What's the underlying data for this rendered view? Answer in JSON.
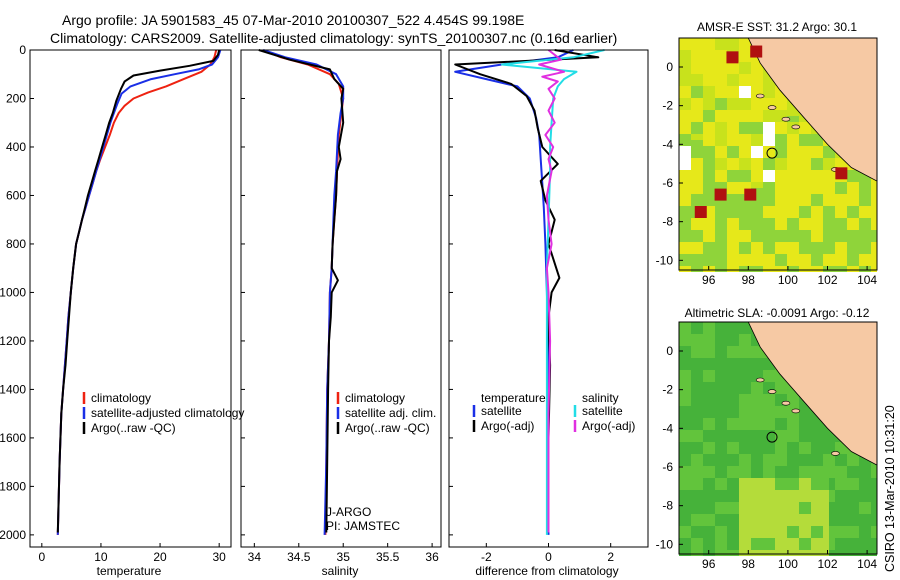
{
  "figure": {
    "title_line1": "Argo profile: JA 5901583_45 07-Mar-2010 20100307_522 4.454S 99.198E",
    "title_line2": "Climatology: CARS2009. Satellite-adjusted climatology: synTS_20100307.nc (0.16d earlier)",
    "side_label": "CSIRO 13-Mar-2010 10:31:20",
    "colors": {
      "climatology": "#ee2211",
      "satellite": "#1a2fe6",
      "argo": "#000000",
      "sal_satellite": "#22dde6",
      "sal_argo": "#e030e0",
      "land": "#f6c9a4",
      "frame": "#000000"
    }
  },
  "chart_data": [
    {
      "type": "line",
      "id": "temperature",
      "xlabel": "temperature",
      "ylabel": "",
      "xlim": [
        -2,
        32
      ],
      "ylim": [
        2050,
        0
      ],
      "xticks": [
        0,
        10,
        20,
        30
      ],
      "yticks": [
        0,
        200,
        400,
        600,
        800,
        1000,
        1200,
        1400,
        1600,
        1800,
        2000
      ],
      "legend": {
        "placement": "lower-right",
        "entries": [
          "climatology",
          "satellite-adjusted climatology",
          "Argo(..raw -QC)"
        ]
      },
      "series": [
        {
          "name": "climatology",
          "color_key": "climatology",
          "x": [
            29.5,
            29.2,
            28.5,
            27.0,
            24.0,
            21.0,
            18.0,
            15.5,
            14.0,
            13.0,
            12.2,
            11.5,
            10.7,
            9.9,
            9.2,
            8.6,
            8.0,
            7.4,
            6.8,
            6.3,
            5.8,
            5.3,
            4.9,
            4.5,
            4.2,
            3.9,
            3.6,
            3.3,
            3.0,
            2.7
          ],
          "y": [
            0,
            30,
            60,
            90,
            120,
            150,
            175,
            200,
            230,
            260,
            300,
            350,
            400,
            450,
            500,
            550,
            600,
            650,
            700,
            750,
            800,
            900,
            1000,
            1100,
            1200,
            1300,
            1400,
            1500,
            1700,
            2000
          ]
        },
        {
          "name": "satellite-adjusted climatology",
          "color_key": "satellite",
          "x": [
            30.2,
            29.8,
            28.8,
            26.5,
            22.5,
            18.5,
            15.0,
            13.5,
            12.8,
            12.2,
            11.6,
            11.0,
            10.4,
            9.8,
            9.2,
            8.6,
            8.0,
            7.4,
            6.8,
            6.3,
            5.8,
            5.3,
            4.9,
            4.5,
            4.2,
            3.9,
            3.6,
            3.3,
            3.0,
            2.7
          ],
          "y": [
            0,
            30,
            60,
            80,
            100,
            120,
            150,
            180,
            220,
            260,
            300,
            350,
            400,
            450,
            500,
            550,
            600,
            650,
            700,
            750,
            800,
            900,
            1000,
            1100,
            1200,
            1300,
            1400,
            1500,
            1700,
            2000
          ]
        },
        {
          "name": "Argo(..raw -QC)",
          "color_key": "argo",
          "x": [
            30.0,
            29.8,
            29.0,
            25.0,
            20.0,
            15.5,
            14.0,
            13.4,
            12.6,
            12.0,
            11.4,
            10.8,
            10.2,
            9.6,
            9.0,
            8.4,
            7.8,
            7.3,
            6.8,
            6.3,
            5.8,
            5.3,
            4.9,
            4.6,
            4.3,
            4.0,
            3.6,
            3.3,
            3.0,
            2.7
          ],
          "y": [
            0,
            20,
            45,
            65,
            85,
            105,
            130,
            160,
            210,
            260,
            300,
            350,
            400,
            450,
            500,
            550,
            600,
            650,
            700,
            750,
            800,
            900,
            1000,
            1100,
            1200,
            1300,
            1400,
            1500,
            1700,
            1990
          ]
        }
      ]
    },
    {
      "type": "line",
      "id": "salinity",
      "xlabel": "salinity",
      "ylabel": "",
      "xlim": [
        33.85,
        36.1
      ],
      "ylim": [
        2050,
        0
      ],
      "xticks": [
        34,
        34.5,
        35,
        35.5,
        36
      ],
      "xtick_labels": [
        "34",
        "34.5",
        "35",
        "35.5",
        "36"
      ],
      "legend": {
        "placement": "lower-right",
        "entries": [
          "climatology",
          "satellite adj. clim.",
          "Argo(..raw -QC)"
        ]
      },
      "annotations": [
        "J-ARGO",
        "PI: JAMSTEC"
      ],
      "series": [
        {
          "name": "climatology",
          "color_key": "climatology",
          "x": [
            34.1,
            34.3,
            34.6,
            34.85,
            34.95,
            35.0,
            34.98,
            34.95,
            34.93,
            34.92,
            34.9,
            34.88,
            34.87,
            34.85,
            34.84,
            34.82,
            34.81,
            34.8
          ],
          "y": [
            0,
            30,
            60,
            100,
            140,
            200,
            260,
            350,
            500,
            600,
            700,
            800,
            900,
            1000,
            1200,
            1400,
            1700,
            2000
          ]
        },
        {
          "name": "satellite adj. clim.",
          "color_key": "satellite",
          "x": [
            34.1,
            34.35,
            34.7,
            34.92,
            35.0,
            35.0,
            34.97,
            34.94,
            34.92,
            34.9,
            34.89,
            34.88,
            34.87,
            34.85,
            34.84,
            34.82,
            34.81,
            34.79
          ],
          "y": [
            0,
            30,
            60,
            100,
            150,
            200,
            260,
            350,
            500,
            600,
            700,
            800,
            900,
            1000,
            1200,
            1400,
            1700,
            2000
          ]
        },
        {
          "name": "Argo(..raw -QC)",
          "color_key": "argo",
          "x": [
            34.05,
            34.4,
            34.85,
            34.9,
            35.0,
            34.98,
            35.0,
            34.95,
            34.97,
            34.93,
            34.92,
            34.9,
            34.88,
            34.87,
            34.94,
            34.87,
            34.86,
            34.84,
            34.83,
            34.82,
            34.81
          ],
          "y": [
            0,
            40,
            80,
            120,
            160,
            200,
            300,
            400,
            450,
            500,
            600,
            700,
            800,
            900,
            950,
            1000,
            1100,
            1200,
            1400,
            1700,
            1990
          ]
        }
      ]
    },
    {
      "type": "line",
      "id": "difference",
      "xlabel": "difference from climatology",
      "ylabel": "",
      "xlim": [
        -3.2,
        3.2
      ],
      "ylim": [
        2050,
        0
      ],
      "xticks": [
        -2,
        0,
        2
      ],
      "legend": {
        "placement": "lower-center",
        "groups": [
          {
            "title": "temperature",
            "entries": [
              "satellite",
              "Argo(-adj)"
            ]
          },
          {
            "title": "salinity",
            "entries": [
              "satellite",
              "Argo(-adj)"
            ]
          }
        ]
      },
      "series": [
        {
          "name": "temperature satellite",
          "color_key": "satellite",
          "x": [
            0.8,
            0.3,
            -1.5,
            -3.0,
            -2.0,
            -1.0,
            -0.6,
            -0.4,
            -0.3,
            -0.25,
            -0.2,
            -0.15,
            -0.1,
            -0.05,
            0.0,
            0.0,
            0.0
          ],
          "y": [
            0,
            30,
            60,
            90,
            120,
            150,
            200,
            280,
            350,
            450,
            550,
            650,
            800,
            1000,
            1300,
            1600,
            2000
          ]
        },
        {
          "name": "temperature Argo(-adj)",
          "color_key": "argo",
          "x": [
            0.2,
            1.6,
            -3.0,
            -2.2,
            -1.2,
            -0.7,
            -0.45,
            -0.35,
            -0.2,
            0.3,
            -0.25,
            -0.1,
            0.2,
            0.0,
            0.35,
            0.1,
            0.0,
            0.05,
            0.0,
            0.0
          ],
          "y": [
            0,
            30,
            60,
            100,
            140,
            190,
            250,
            320,
            400,
            470,
            540,
            620,
            700,
            800,
            940,
            1000,
            1100,
            1300,
            1600,
            1990
          ]
        },
        {
          "name": "salinity satellite",
          "color_key": "sal_satellite",
          "x": [
            1.8,
            0.8,
            -1.5,
            0.9,
            0.5,
            0.3,
            0.15,
            0.1,
            0.05,
            0.05,
            0.0,
            -0.05,
            -0.05,
            -0.05,
            -0.05,
            -0.05
          ],
          "y": [
            0,
            30,
            60,
            90,
            120,
            150,
            200,
            300,
            400,
            500,
            700,
            900,
            1200,
            1500,
            1800,
            2000
          ]
        },
        {
          "name": "salinity Argo(-adj)",
          "color_key": "sal_argo",
          "x": [
            0.0,
            0.4,
            -0.3,
            0.5,
            -0.2,
            0.3,
            0.0,
            0.2,
            0.0,
            0.2,
            -0.1,
            0.15,
            0.0,
            0.1,
            -0.05,
            0.0,
            0.1,
            -0.05,
            0.0,
            0.05,
            0.0,
            0.0
          ],
          "y": [
            0,
            40,
            60,
            90,
            110,
            130,
            160,
            200,
            250,
            300,
            350,
            400,
            450,
            500,
            600,
            700,
            800,
            900,
            1000,
            1200,
            1500,
            1990
          ]
        }
      ]
    },
    {
      "type": "heatmap",
      "id": "sst-map",
      "title": "AMSR-E SST: 31.2 Argo: 30.1",
      "xlim": [
        94.5,
        104.5
      ],
      "ylim": [
        -10.5,
        1.5
      ],
      "xticks": [
        96,
        98,
        100,
        102,
        104
      ],
      "yticks": [
        0,
        -2,
        -4,
        -6,
        -8,
        -10
      ],
      "argo_position": {
        "lon": 99.198,
        "lat": -4.454
      }
    },
    {
      "type": "heatmap",
      "id": "sla-map",
      "title": "Altimetric SLA: -0.0091 Argo: -0.12",
      "xlim": [
        94.5,
        104.5
      ],
      "ylim": [
        -10.5,
        1.5
      ],
      "xticks": [
        96,
        98,
        100,
        102,
        104
      ],
      "yticks": [
        0,
        -2,
        -4,
        -6,
        -8,
        -10
      ],
      "argo_position": {
        "lon": 99.198,
        "lat": -4.454
      }
    }
  ]
}
